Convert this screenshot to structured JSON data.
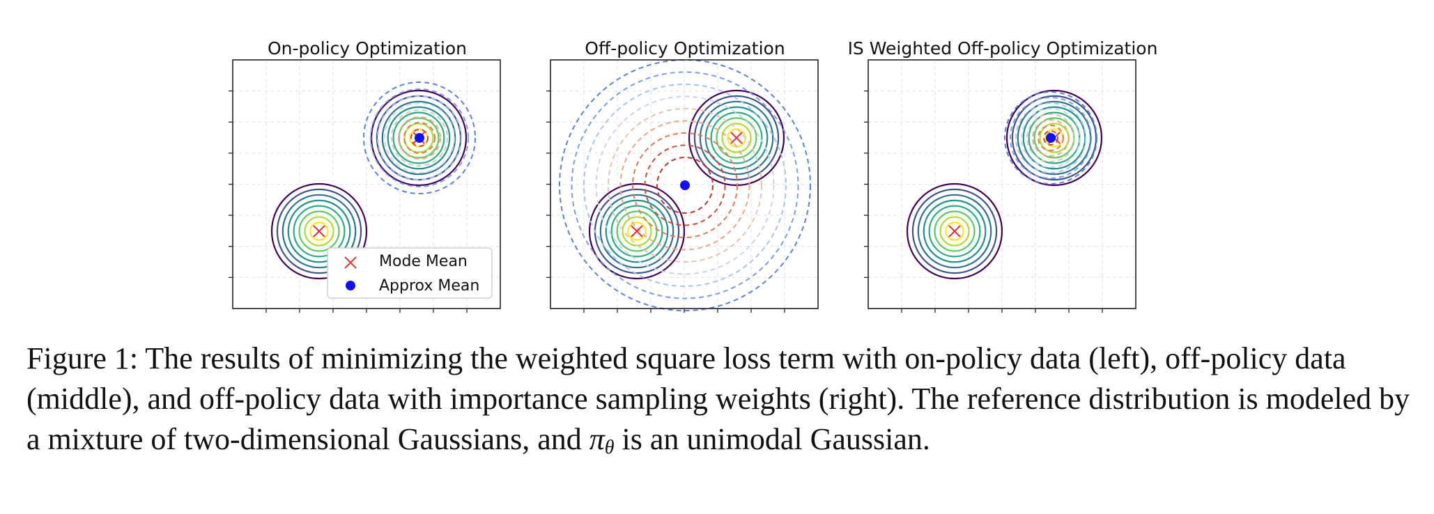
{
  "figure": {
    "panels": [
      {
        "title": "On-policy Optimization",
        "variant": "onpolicy"
      },
      {
        "title": "Off-policy Optimization",
        "variant": "offpolicy"
      },
      {
        "title": "IS Weighted Off-policy Optimization",
        "variant": "isweighted"
      }
    ],
    "legend": {
      "items": [
        {
          "label": "Mode Mean",
          "marker": "x",
          "color": "#e8312f"
        },
        {
          "label": "Approx Mean",
          "marker": "dot",
          "color": "#1010f0"
        }
      ]
    },
    "colors": {
      "mode_mean": "#e8312f",
      "approx_mean": "#1010f0",
      "reference_contours": [
        "#440154",
        "#3b528b",
        "#2c728e",
        "#21918c",
        "#28ae80",
        "#5ec962",
        "#addc30",
        "#fde725"
      ]
    }
  },
  "caption": {
    "part1": "Figure 1: The results of minimizing the weighted square loss term with on-policy data (left), off-policy data (middle), and off-policy data with importance sampling weights (right). The reference distribution is modeled by a mixture of two-dimensional Gaussians, and ",
    "pi": "π",
    "theta": "θ",
    "part2": " is an unimodal Gaussian."
  }
}
